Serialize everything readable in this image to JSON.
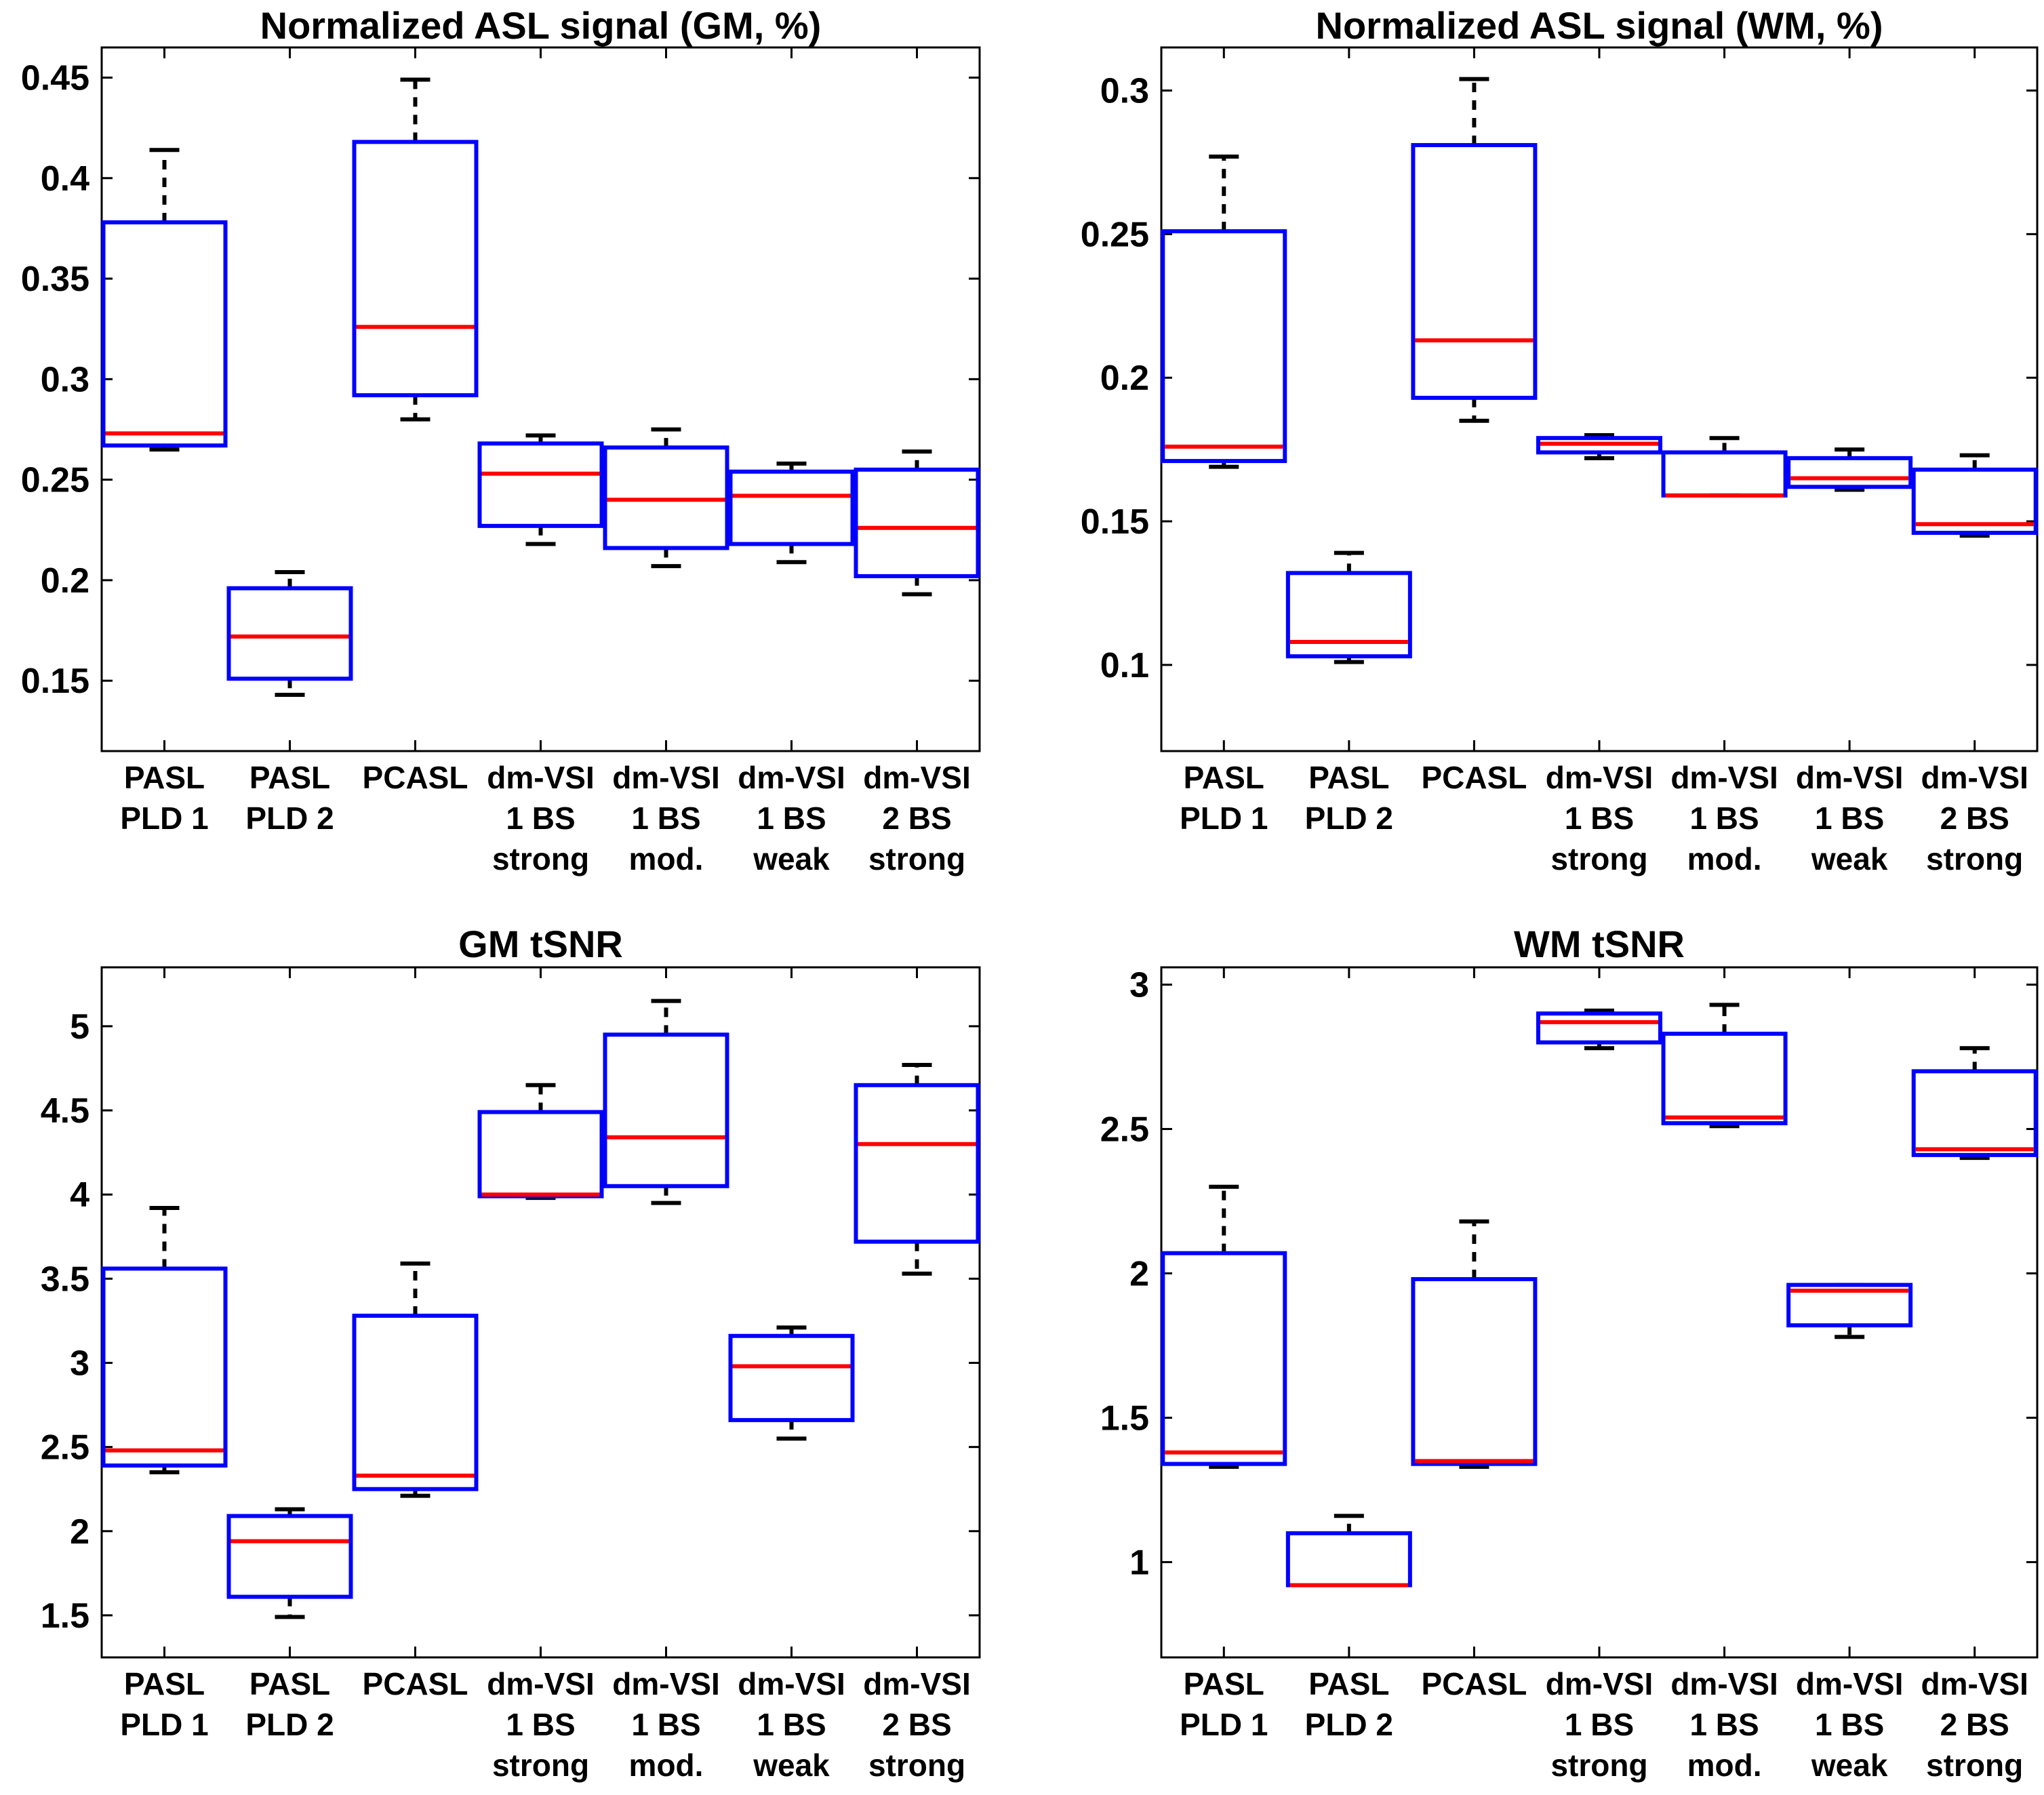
{
  "chart_data": [
    {
      "type": "box",
      "title": "Normalized ASL signal (GM, %)",
      "xlabel": "",
      "ylabel": "",
      "ylim": [
        0.115,
        0.465
      ],
      "yticks": [
        0.15,
        0.2,
        0.25,
        0.3,
        0.35,
        0.4,
        0.45
      ],
      "ytick_labels": [
        "0.15",
        "0.2",
        "0.25",
        "0.3",
        "0.35",
        "0.4",
        "0.45"
      ],
      "categories": [
        [
          "PASL",
          "PLD 1"
        ],
        [
          "PASL",
          "PLD 2"
        ],
        [
          "PCASL"
        ],
        [
          "dm-VSI",
          "1 BS",
          "strong"
        ],
        [
          "dm-VSI",
          "1 BS",
          "mod."
        ],
        [
          "dm-VSI",
          "1 BS",
          "weak"
        ],
        [
          "dm-VSI",
          "2 BS",
          "strong"
        ]
      ],
      "boxes": [
        {
          "whisker_low": 0.265,
          "q1": 0.267,
          "median": 0.273,
          "q3": 0.378,
          "whisker_high": 0.414
        },
        {
          "whisker_low": 0.143,
          "q1": 0.151,
          "median": 0.172,
          "q3": 0.196,
          "whisker_high": 0.204
        },
        {
          "whisker_low": 0.28,
          "q1": 0.292,
          "median": 0.326,
          "q3": 0.418,
          "whisker_high": 0.449
        },
        {
          "whisker_low": 0.218,
          "q1": 0.227,
          "median": 0.253,
          "q3": 0.268,
          "whisker_high": 0.272
        },
        {
          "whisker_low": 0.207,
          "q1": 0.216,
          "median": 0.24,
          "q3": 0.266,
          "whisker_high": 0.275
        },
        {
          "whisker_low": 0.209,
          "q1": 0.218,
          "median": 0.242,
          "q3": 0.254,
          "whisker_high": 0.258
        },
        {
          "whisker_low": 0.193,
          "q1": 0.202,
          "median": 0.226,
          "q3": 0.255,
          "whisker_high": 0.264
        }
      ]
    },
    {
      "type": "box",
      "title": "Normalized ASL signal (WM, %)",
      "xlabel": "",
      "ylabel": "",
      "ylim": [
        0.07,
        0.315
      ],
      "yticks": [
        0.1,
        0.15,
        0.2,
        0.25,
        0.3
      ],
      "ytick_labels": [
        "0.1",
        "0.15",
        "0.2",
        "0.25",
        "0.3"
      ],
      "categories": [
        [
          "PASL",
          "PLD 1"
        ],
        [
          "PASL",
          "PLD 2"
        ],
        [
          "PCASL"
        ],
        [
          "dm-VSI",
          "1 BS",
          "strong"
        ],
        [
          "dm-VSI",
          "1 BS",
          "mod."
        ],
        [
          "dm-VSI",
          "1 BS",
          "weak"
        ],
        [
          "dm-VSI",
          "2 BS",
          "strong"
        ]
      ],
      "boxes": [
        {
          "whisker_low": 0.169,
          "q1": 0.171,
          "median": 0.176,
          "q3": 0.251,
          "whisker_high": 0.277
        },
        {
          "whisker_low": 0.101,
          "q1": 0.103,
          "median": 0.108,
          "q3": 0.132,
          "whisker_high": 0.139
        },
        {
          "whisker_low": 0.185,
          "q1": 0.193,
          "median": 0.213,
          "q3": 0.281,
          "whisker_high": 0.304
        },
        {
          "whisker_low": 0.172,
          "q1": 0.174,
          "median": 0.177,
          "q3": 0.179,
          "whisker_high": 0.18
        },
        {
          "whisker_low": 0.159,
          "q1": 0.159,
          "median": 0.159,
          "q3": 0.174,
          "whisker_high": 0.179
        },
        {
          "whisker_low": 0.161,
          "q1": 0.162,
          "median": 0.165,
          "q3": 0.172,
          "whisker_high": 0.175
        },
        {
          "whisker_low": 0.145,
          "q1": 0.146,
          "median": 0.149,
          "q3": 0.168,
          "whisker_high": 0.173
        }
      ]
    },
    {
      "type": "box",
      "title": "GM tSNR",
      "xlabel": "",
      "ylabel": "",
      "ylim": [
        1.25,
        5.35
      ],
      "yticks": [
        1.5,
        2,
        2.5,
        3,
        3.5,
        4,
        4.5,
        5
      ],
      "ytick_labels": [
        "1.5",
        "2",
        "2.5",
        "3",
        "3.5",
        "4",
        "4.5",
        "5"
      ],
      "categories": [
        [
          "PASL",
          "PLD 1"
        ],
        [
          "PASL",
          "PLD 2"
        ],
        [
          "PCASL"
        ],
        [
          "dm-VSI",
          "1 BS",
          "strong"
        ],
        [
          "dm-VSI",
          "1 BS",
          "mod."
        ],
        [
          "dm-VSI",
          "1 BS",
          "weak"
        ],
        [
          "dm-VSI",
          "2 BS",
          "strong"
        ]
      ],
      "boxes": [
        {
          "whisker_low": 2.35,
          "q1": 2.39,
          "median": 2.48,
          "q3": 3.56,
          "whisker_high": 3.92
        },
        {
          "whisker_low": 1.49,
          "q1": 1.61,
          "median": 1.94,
          "q3": 2.09,
          "whisker_high": 2.13
        },
        {
          "whisker_low": 2.21,
          "q1": 2.25,
          "median": 2.33,
          "q3": 3.28,
          "whisker_high": 3.59
        },
        {
          "whisker_low": 3.98,
          "q1": 3.99,
          "median": 4.0,
          "q3": 4.49,
          "whisker_high": 4.65
        },
        {
          "whisker_low": 3.95,
          "q1": 4.05,
          "median": 4.34,
          "q3": 4.95,
          "whisker_high": 5.15
        },
        {
          "whisker_low": 2.55,
          "q1": 2.66,
          "median": 2.98,
          "q3": 3.16,
          "whisker_high": 3.21
        },
        {
          "whisker_low": 3.53,
          "q1": 3.72,
          "median": 4.3,
          "q3": 4.65,
          "whisker_high": 4.77
        }
      ]
    },
    {
      "type": "box",
      "title": "WM tSNR",
      "xlabel": "",
      "ylabel": "",
      "ylim": [
        0.67,
        3.06
      ],
      "yticks": [
        1,
        1.5,
        2,
        2.5,
        3
      ],
      "ytick_labels": [
        "1",
        "1.5",
        "2",
        "2.5",
        "3"
      ],
      "categories": [
        [
          "PASL",
          "PLD 1"
        ],
        [
          "PASL",
          "PLD 2"
        ],
        [
          "PCASL"
        ],
        [
          "dm-VSI",
          "1 BS",
          "strong"
        ],
        [
          "dm-VSI",
          "1 BS",
          "mod."
        ],
        [
          "dm-VSI",
          "1 BS",
          "weak"
        ],
        [
          "dm-VSI",
          "2 BS",
          "strong"
        ]
      ],
      "boxes": [
        {
          "whisker_low": 1.33,
          "q1": 1.34,
          "median": 1.38,
          "q3": 2.07,
          "whisker_high": 2.3
        },
        {
          "whisker_low": 0.92,
          "q1": 0.92,
          "median": 0.92,
          "q3": 1.1,
          "whisker_high": 1.16
        },
        {
          "whisker_low": 1.33,
          "q1": 1.34,
          "median": 1.35,
          "q3": 1.98,
          "whisker_high": 2.18
        },
        {
          "whisker_low": 2.78,
          "q1": 2.8,
          "median": 2.87,
          "q3": 2.9,
          "whisker_high": 2.91
        },
        {
          "whisker_low": 2.51,
          "q1": 2.52,
          "median": 2.54,
          "q3": 2.83,
          "whisker_high": 2.93
        },
        {
          "whisker_low": 1.78,
          "q1": 1.82,
          "median": 1.94,
          "q3": 1.96,
          "whisker_high": 1.96
        },
        {
          "whisker_low": 2.4,
          "q1": 2.41,
          "median": 2.43,
          "q3": 2.7,
          "whisker_high": 2.78
        }
      ]
    }
  ],
  "colors": {
    "box": "#0000FF",
    "median": "#FF0000",
    "whisker": "#000000",
    "axes": "#000000"
  }
}
